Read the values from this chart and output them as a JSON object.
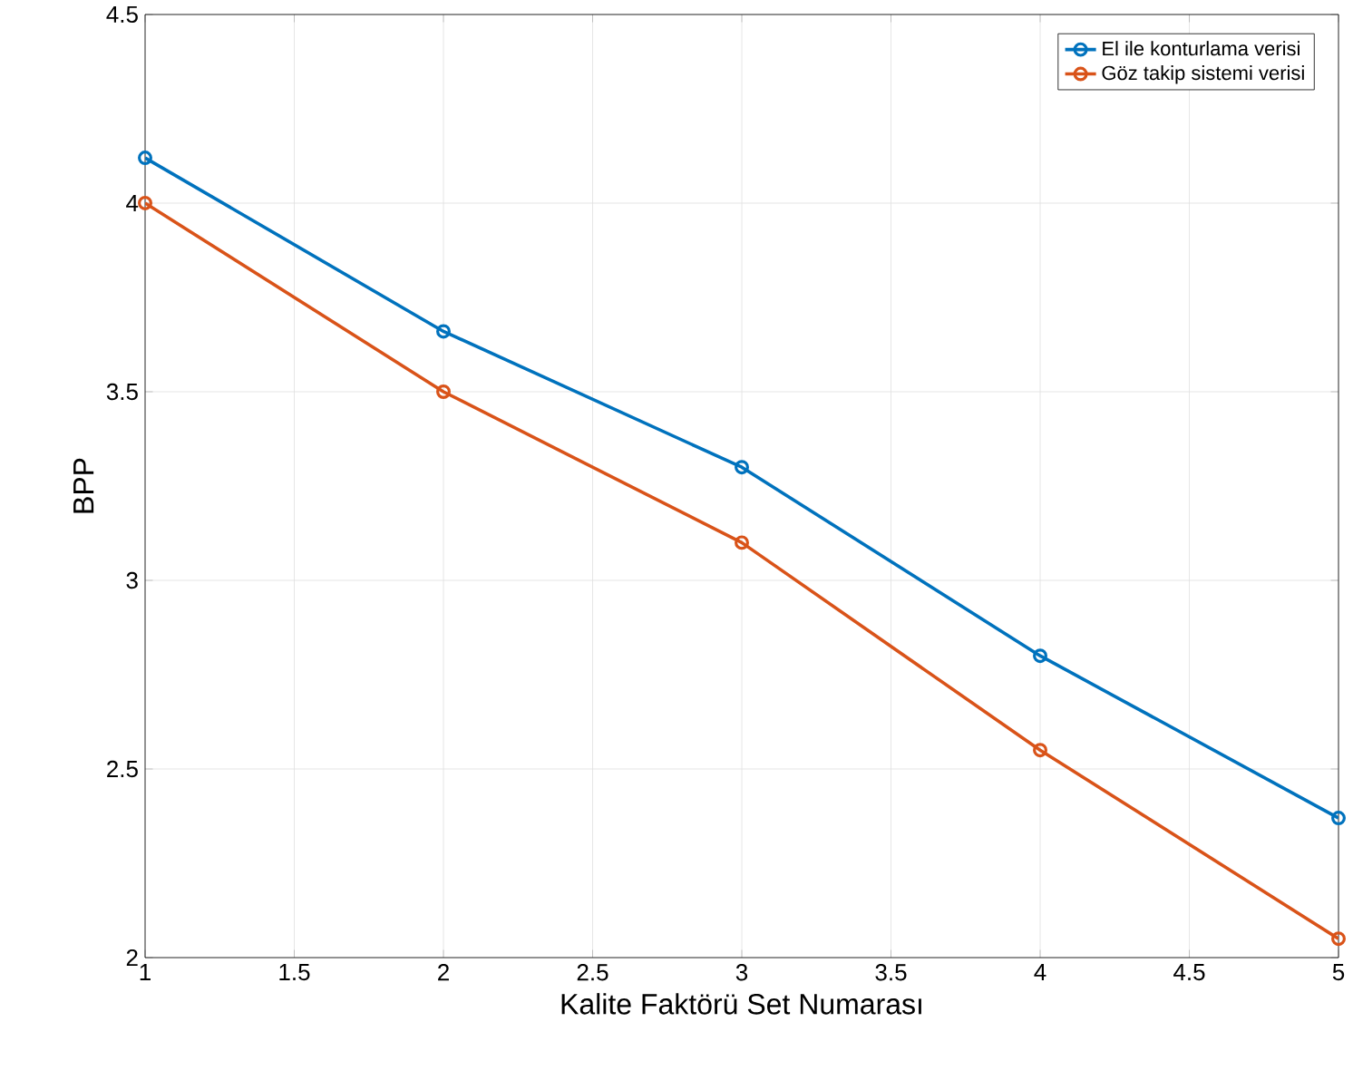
{
  "chart_data": {
    "type": "line",
    "xlabel": "Kalite Faktörü Set Numarası",
    "ylabel": "BPP",
    "x": [
      1,
      2,
      3,
      4,
      5
    ],
    "series": [
      {
        "name": "El ile konturlama verisi",
        "color": "#0072bd",
        "values": [
          4.12,
          3.66,
          3.3,
          2.8,
          2.37
        ]
      },
      {
        "name": "Göz takip sistemi verisi",
        "color": "#d95319",
        "values": [
          4.0,
          3.5,
          3.1,
          2.55,
          2.05
        ]
      }
    ],
    "xlim": [
      1,
      5
    ],
    "ylim": [
      2,
      4.5
    ],
    "xticks": [
      1,
      1.5,
      2,
      2.5,
      3,
      3.5,
      4,
      4.5,
      5
    ],
    "yticks": [
      2,
      2.5,
      3,
      3.5,
      4,
      4.5
    ],
    "grid": true,
    "legend": "top right",
    "marker": "circle",
    "line_style": "solid"
  }
}
